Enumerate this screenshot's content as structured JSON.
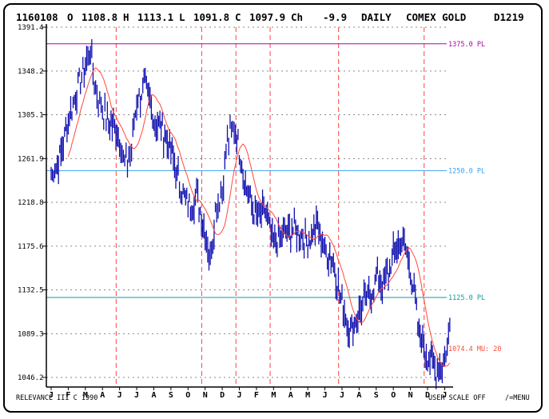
{
  "header": {
    "code": "1160108",
    "open_label": "O",
    "open": "1108.8",
    "high_label": "H",
    "high": "1113.1",
    "low_label": "L",
    "low": "1091.8",
    "close_label": "C",
    "close": "1097.9",
    "change_label": "Ch",
    "change": "-9.9",
    "period": "DAILY",
    "market": "COMEX GOLD",
    "contract": "D1219"
  },
  "footer": {
    "brand": "RELEVANCE III C 1990",
    "scale_mode": "USER SCALE OFF",
    "menu_hint": "/=MENU"
  },
  "colors": {
    "price": "#1010b0",
    "moving_average": "#ff4a3a",
    "line_1375": "#b000b0",
    "line_1250": "#3aa0f0",
    "line_1125": "#109aa0",
    "year_divider": "#ff4040",
    "grid": "#8a8a8a"
  },
  "chart_data": {
    "type": "line",
    "title": "COMEX GOLD DAILY",
    "ylim": [
      1046.2,
      1391.4
    ],
    "y_ticks": [
      "1391.4",
      "1348.2",
      "1305.1",
      "1261.9",
      "1218.8",
      "1175.6",
      "1132.5",
      "1089.3",
      "1046.2"
    ],
    "x_ticks": [
      "J",
      "F",
      "M",
      "A",
      "J",
      "J",
      "A",
      "S",
      "O",
      "N",
      "D",
      "J",
      "F",
      "M",
      "A",
      "M",
      "J",
      "J",
      "A",
      "S",
      "O",
      "N",
      "D",
      "J"
    ],
    "year_divider_ticks": [
      4,
      9,
      11,
      13,
      17,
      22
    ],
    "grid": true,
    "series": [
      {
        "type": "high-low",
        "x": [
          0,
          0.5,
          1,
          1.5,
          2,
          2.3,
          2.6,
          3,
          3.5,
          4,
          4.3,
          4.7,
          5,
          5.5,
          6,
          6.5,
          7,
          7.5,
          8,
          8.5,
          9,
          9.3,
          9.6,
          10,
          10.3,
          10.7,
          11,
          11.5,
          12,
          12.5,
          13,
          13.5,
          14,
          14.5,
          15,
          15.5,
          16,
          16.5,
          17,
          17.5,
          18,
          18.5,
          19,
          19.5,
          20,
          20.5,
          21,
          21.5,
          22,
          22.5,
          23,
          23.3
        ],
        "close": [
          1245,
          1262,
          1300,
          1330,
          1355,
          1368,
          1330,
          1310,
          1295,
          1285,
          1255,
          1272,
          1318,
          1335,
          1300,
          1290,
          1270,
          1236,
          1215,
          1225,
          1192,
          1162,
          1210,
          1232,
          1278,
          1295,
          1270,
          1224,
          1205,
          1212,
          1175,
          1185,
          1192,
          1188,
          1180,
          1198,
          1172,
          1160,
          1118,
          1092,
          1112,
          1125,
          1142,
          1138,
          1168,
          1182,
          1155,
          1090,
          1068,
          1052,
          1062,
          1095
        ]
      },
      {
        "name": "1375.0 PL",
        "value": 1375.0
      },
      {
        "name": "1250.0 PL",
        "value": 1250.0
      },
      {
        "name": "1125.0 PL",
        "value": 1125.0
      },
      {
        "name": "1074.4 MU: 20",
        "value": 1074.4
      }
    ]
  }
}
